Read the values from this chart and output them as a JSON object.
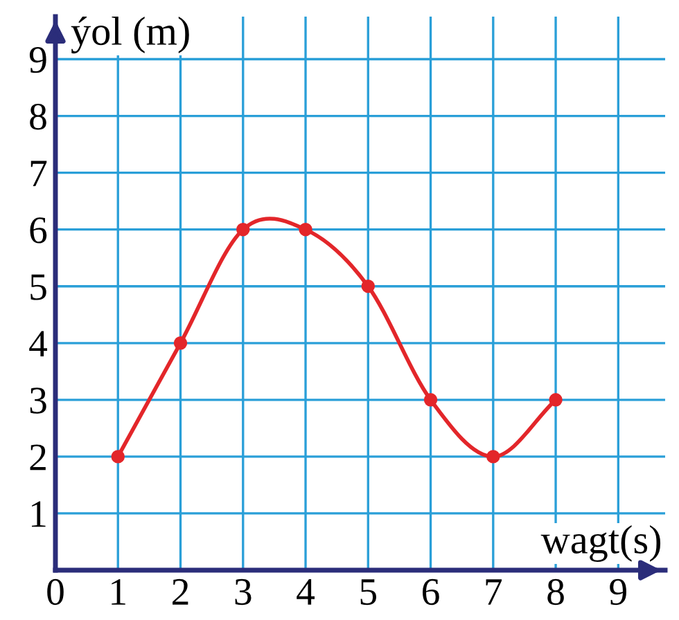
{
  "chart_data": {
    "type": "line",
    "xlabel": "wagt(s)",
    "ylabel": "ýol (m)",
    "x": [
      1,
      2,
      3,
      4,
      5,
      6,
      7,
      8
    ],
    "series": [
      {
        "color": "#e3262a",
        "values": [
          2,
          4,
          6,
          6,
          5,
          3,
          2,
          3
        ]
      }
    ],
    "xlim": [
      0,
      9.75
    ],
    "ylim": [
      0,
      9.75
    ],
    "xticks": [
      0,
      1,
      2,
      3,
      4,
      5,
      6,
      7,
      8,
      9
    ],
    "yticks": [
      {
        "value": 0,
        "label": null
      },
      1,
      2,
      3,
      4,
      5,
      6,
      7,
      8,
      9
    ],
    "grid": true,
    "marker": "circle",
    "line_style": "solid"
  }
}
